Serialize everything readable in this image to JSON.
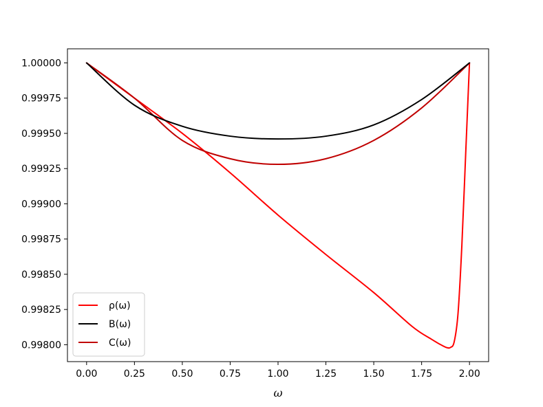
{
  "chart_data": {
    "type": "line",
    "title": "",
    "xlabel": "ω",
    "ylabel": "",
    "xlim": [
      -0.1,
      2.1
    ],
    "ylim": [
      0.99788,
      1.0001
    ],
    "x_ticks": [
      0.0,
      0.25,
      0.5,
      0.75,
      1.0,
      1.25,
      1.5,
      1.75,
      2.0
    ],
    "x_tick_labels": [
      "0.00",
      "0.25",
      "0.50",
      "0.75",
      "1.00",
      "1.25",
      "1.50",
      "1.75",
      "2.00"
    ],
    "y_ticks": [
      0.998,
      0.99825,
      0.9985,
      0.99875,
      0.999,
      0.99925,
      0.9995,
      0.99975,
      1.0
    ],
    "y_tick_labels": [
      "0.99800",
      "0.99825",
      "0.99850",
      "0.99875",
      "0.99900",
      "0.99925",
      "0.99950",
      "0.99975",
      "1.00000"
    ],
    "grid": false,
    "legend_position": "lower-left",
    "series": [
      {
        "name": "ρ(ω)",
        "color": "#ff0000",
        "x": [
          0.0,
          0.25,
          0.5,
          0.75,
          1.0,
          1.25,
          1.5,
          1.7,
          1.8,
          1.85,
          1.88,
          1.9,
          1.92,
          1.94,
          1.96,
          1.98,
          2.0
        ],
        "y": [
          1.0,
          0.99975,
          0.9995,
          0.99922,
          0.99892,
          0.99864,
          0.99837,
          0.99813,
          0.99804,
          0.998,
          0.99798,
          0.99798,
          0.99802,
          0.99822,
          0.9987,
          0.99935,
          1.0
        ]
      },
      {
        "name": "B(ω)",
        "color": "#000000",
        "x": [
          0.0,
          0.25,
          0.5,
          0.75,
          1.0,
          1.25,
          1.5,
          1.75,
          2.0
        ],
        "y": [
          1.0,
          0.9997,
          0.99955,
          0.99948,
          0.99946,
          0.99948,
          0.99956,
          0.99974,
          1.0
        ]
      },
      {
        "name": "C(ω)",
        "color": "#c00000",
        "x": [
          0.0,
          0.25,
          0.5,
          0.75,
          1.0,
          1.25,
          1.5,
          1.75,
          2.0
        ],
        "y": [
          1.0,
          0.99975,
          0.99945,
          0.99932,
          0.99928,
          0.99932,
          0.99945,
          0.99968,
          1.0
        ]
      }
    ]
  }
}
